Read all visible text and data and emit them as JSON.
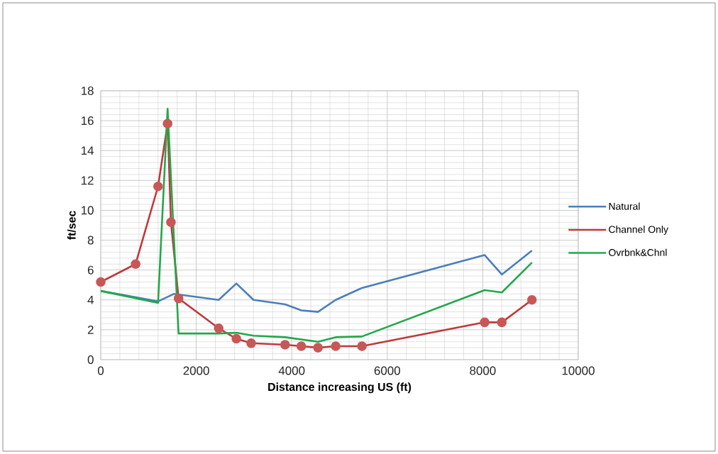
{
  "chart_data": {
    "type": "line",
    "xlabel": "Distance increasing US (ft)",
    "ylabel": "ft/sec",
    "xlim": [
      0,
      10000
    ],
    "ylim": [
      0,
      18
    ],
    "xticks": [
      0,
      2000,
      4000,
      6000,
      8000,
      10000
    ],
    "yticks": [
      0,
      2,
      4,
      6,
      8,
      10,
      12,
      14,
      16,
      18
    ],
    "grid": true,
    "legend": "right",
    "series": [
      {
        "name": "Natural",
        "color": "#4a7ebb",
        "marker": "none",
        "x": [
          0,
          1200,
          1530,
          2470,
          2840,
          3200,
          3860,
          4200,
          4550,
          4920,
          5470,
          8040,
          8400,
          9030
        ],
        "values": [
          4.6,
          3.9,
          4.4,
          4.0,
          5.1,
          4.0,
          3.7,
          3.3,
          3.2,
          4.0,
          4.8,
          7.0,
          5.7,
          7.3
        ]
      },
      {
        "name": "Channel Only",
        "color": "#c0393b",
        "marker": "circle",
        "x": [
          0,
          730,
          1200,
          1400,
          1470,
          1630,
          2470,
          2840,
          3150,
          3860,
          4200,
          4550,
          4920,
          5470,
          8040,
          8400,
          9030
        ],
        "values": [
          5.2,
          6.4,
          11.6,
          15.8,
          9.2,
          4.1,
          2.1,
          1.4,
          1.1,
          1.0,
          0.9,
          0.8,
          0.9,
          0.9,
          2.5,
          2.5,
          4.0
        ]
      },
      {
        "name": "Ovrbnk&Chnl",
        "color": "#22a84a",
        "marker": "none",
        "x": [
          0,
          1200,
          1400,
          1630,
          2470,
          2840,
          3200,
          3860,
          4550,
          4920,
          5470,
          8040,
          8400,
          9030
        ],
        "values": [
          4.6,
          3.8,
          16.8,
          1.75,
          1.75,
          1.8,
          1.6,
          1.5,
          1.2,
          1.5,
          1.55,
          4.65,
          4.5,
          6.5
        ]
      }
    ]
  }
}
